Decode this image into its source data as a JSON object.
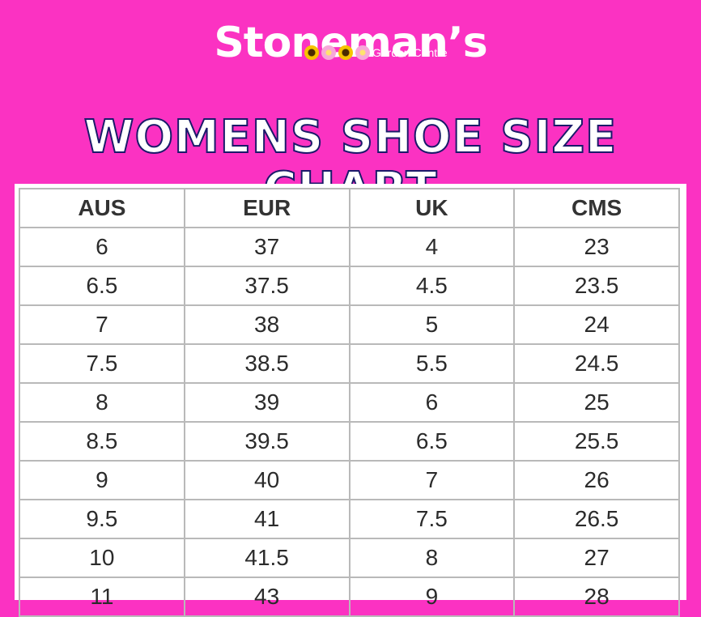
{
  "brand": {
    "name": "Stoneman’s",
    "subtitle": "Garden Centre"
  },
  "title": "WOMENS SHOE SIZE CHART",
  "table": {
    "headers": [
      "AUS",
      "EUR",
      "UK",
      "CMS"
    ],
    "rows": [
      [
        "6",
        "37",
        "4",
        "23"
      ],
      [
        "6.5",
        "37.5",
        "4.5",
        "23.5"
      ],
      [
        "7",
        "38",
        "5",
        "24"
      ],
      [
        "7.5",
        "38.5",
        "5.5",
        "24.5"
      ],
      [
        "8",
        "39",
        "6",
        "25"
      ],
      [
        "8.5",
        "39.5",
        "6.5",
        "25.5"
      ],
      [
        "9",
        "40",
        "7",
        "26"
      ],
      [
        "9.5",
        "41",
        "7.5",
        "26.5"
      ],
      [
        "10",
        "41.5",
        "8",
        "27"
      ],
      [
        "11",
        "43",
        "9",
        "28"
      ]
    ]
  },
  "colors": {
    "background": "#fb32c2",
    "title_outline": "#1a1a6a",
    "grid_line": "#b9b9b9"
  }
}
